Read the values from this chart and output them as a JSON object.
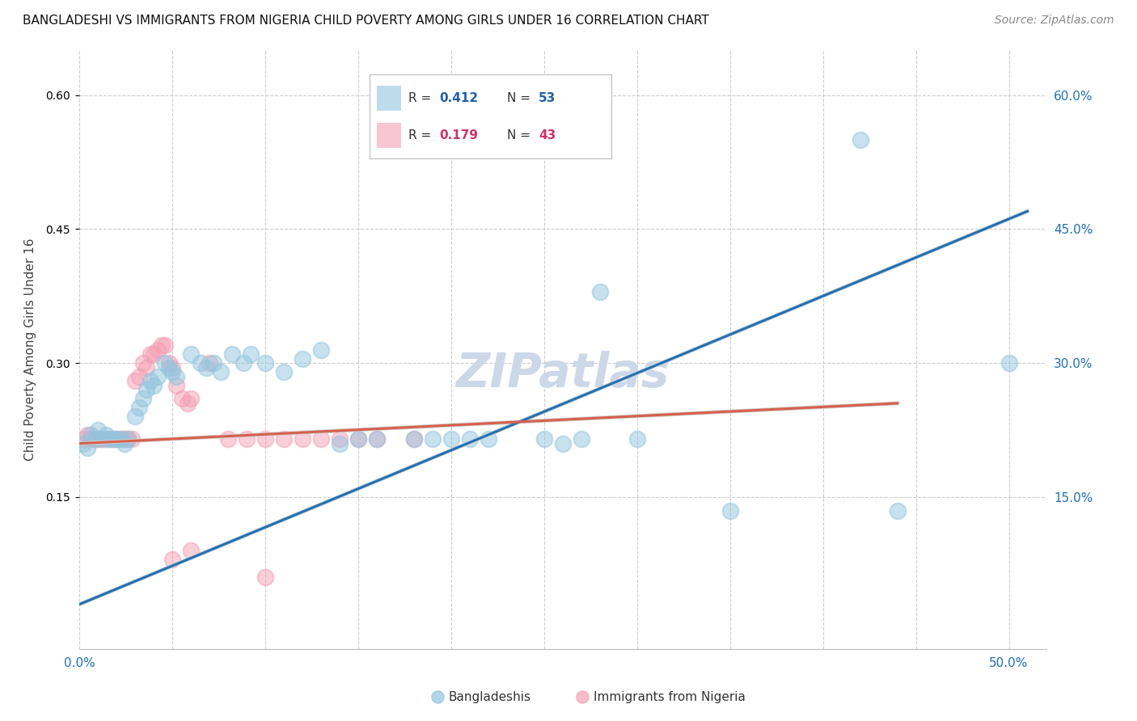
{
  "title": "BANGLADESHI VS IMMIGRANTS FROM NIGERIA CHILD POVERTY AMONG GIRLS UNDER 16 CORRELATION CHART",
  "source": "Source: ZipAtlas.com",
  "ylabel": "Child Poverty Among Girls Under 16",
  "ytick_values": [
    0.15,
    0.3,
    0.45,
    0.6
  ],
  "xlim": [
    0.0,
    0.52
  ],
  "ylim": [
    -0.02,
    0.65
  ],
  "watermark": "ZIPatlas",
  "scatter_blue": [
    [
      0.002,
      0.21
    ],
    [
      0.004,
      0.205
    ],
    [
      0.006,
      0.22
    ],
    [
      0.008,
      0.215
    ],
    [
      0.01,
      0.225
    ],
    [
      0.012,
      0.215
    ],
    [
      0.014,
      0.22
    ],
    [
      0.016,
      0.215
    ],
    [
      0.018,
      0.215
    ],
    [
      0.02,
      0.215
    ],
    [
      0.022,
      0.215
    ],
    [
      0.024,
      0.21
    ],
    [
      0.026,
      0.215
    ],
    [
      0.03,
      0.24
    ],
    [
      0.032,
      0.25
    ],
    [
      0.034,
      0.26
    ],
    [
      0.036,
      0.27
    ],
    [
      0.038,
      0.28
    ],
    [
      0.04,
      0.275
    ],
    [
      0.042,
      0.285
    ],
    [
      0.046,
      0.3
    ],
    [
      0.048,
      0.295
    ],
    [
      0.05,
      0.29
    ],
    [
      0.052,
      0.285
    ],
    [
      0.06,
      0.31
    ],
    [
      0.065,
      0.3
    ],
    [
      0.068,
      0.295
    ],
    [
      0.072,
      0.3
    ],
    [
      0.076,
      0.29
    ],
    [
      0.082,
      0.31
    ],
    [
      0.088,
      0.3
    ],
    [
      0.092,
      0.31
    ],
    [
      0.1,
      0.3
    ],
    [
      0.11,
      0.29
    ],
    [
      0.12,
      0.305
    ],
    [
      0.13,
      0.315
    ],
    [
      0.14,
      0.21
    ],
    [
      0.15,
      0.215
    ],
    [
      0.16,
      0.215
    ],
    [
      0.18,
      0.215
    ],
    [
      0.19,
      0.215
    ],
    [
      0.2,
      0.215
    ],
    [
      0.21,
      0.215
    ],
    [
      0.22,
      0.215
    ],
    [
      0.25,
      0.215
    ],
    [
      0.26,
      0.21
    ],
    [
      0.27,
      0.215
    ],
    [
      0.3,
      0.215
    ],
    [
      0.28,
      0.38
    ],
    [
      0.35,
      0.135
    ],
    [
      0.44,
      0.135
    ],
    [
      0.5,
      0.3
    ],
    [
      0.42,
      0.55
    ]
  ],
  "scatter_pink": [
    [
      0.002,
      0.215
    ],
    [
      0.004,
      0.22
    ],
    [
      0.006,
      0.215
    ],
    [
      0.008,
      0.215
    ],
    [
      0.01,
      0.215
    ],
    [
      0.012,
      0.215
    ],
    [
      0.014,
      0.215
    ],
    [
      0.016,
      0.215
    ],
    [
      0.018,
      0.215
    ],
    [
      0.02,
      0.215
    ],
    [
      0.022,
      0.215
    ],
    [
      0.024,
      0.215
    ],
    [
      0.026,
      0.215
    ],
    [
      0.028,
      0.215
    ],
    [
      0.03,
      0.28
    ],
    [
      0.032,
      0.285
    ],
    [
      0.034,
      0.3
    ],
    [
      0.036,
      0.295
    ],
    [
      0.038,
      0.31
    ],
    [
      0.04,
      0.31
    ],
    [
      0.042,
      0.315
    ],
    [
      0.044,
      0.32
    ],
    [
      0.046,
      0.32
    ],
    [
      0.048,
      0.3
    ],
    [
      0.05,
      0.295
    ],
    [
      0.052,
      0.275
    ],
    [
      0.055,
      0.26
    ],
    [
      0.058,
      0.255
    ],
    [
      0.06,
      0.26
    ],
    [
      0.07,
      0.3
    ],
    [
      0.08,
      0.215
    ],
    [
      0.09,
      0.215
    ],
    [
      0.1,
      0.215
    ],
    [
      0.11,
      0.215
    ],
    [
      0.12,
      0.215
    ],
    [
      0.13,
      0.215
    ],
    [
      0.14,
      0.215
    ],
    [
      0.15,
      0.215
    ],
    [
      0.16,
      0.215
    ],
    [
      0.18,
      0.215
    ],
    [
      0.05,
      0.08
    ],
    [
      0.06,
      0.09
    ],
    [
      0.1,
      0.06
    ]
  ],
  "trendline_blue_x0": 0.0,
  "trendline_blue_x1": 0.51,
  "trendline_blue_y0": 0.03,
  "trendline_blue_y1": 0.47,
  "trendline_pink_x0": 0.0,
  "trendline_pink_x1": 0.44,
  "trendline_pink_y0": 0.21,
  "trendline_pink_y1": 0.255,
  "scatter_blue_color": "#92c5de",
  "scatter_pink_color": "#f4a0b5",
  "trendline_blue_color": "#2171b5",
  "trendline_pink_color": "#d6604d",
  "trendline_gray_color": "#d0d0d0",
  "background_color": "#ffffff",
  "grid_color": "#cccccc",
  "title_fontsize": 11,
  "source_fontsize": 10,
  "watermark_fontsize": 42,
  "watermark_color": "#ccd8e8",
  "legend_R_color": "#2060aa",
  "legend_N_color": "#2060aa",
  "legend_R2_color": "#cc3366",
  "legend_N2_color": "#cc3366",
  "axis_label_color": "#2171b5"
}
